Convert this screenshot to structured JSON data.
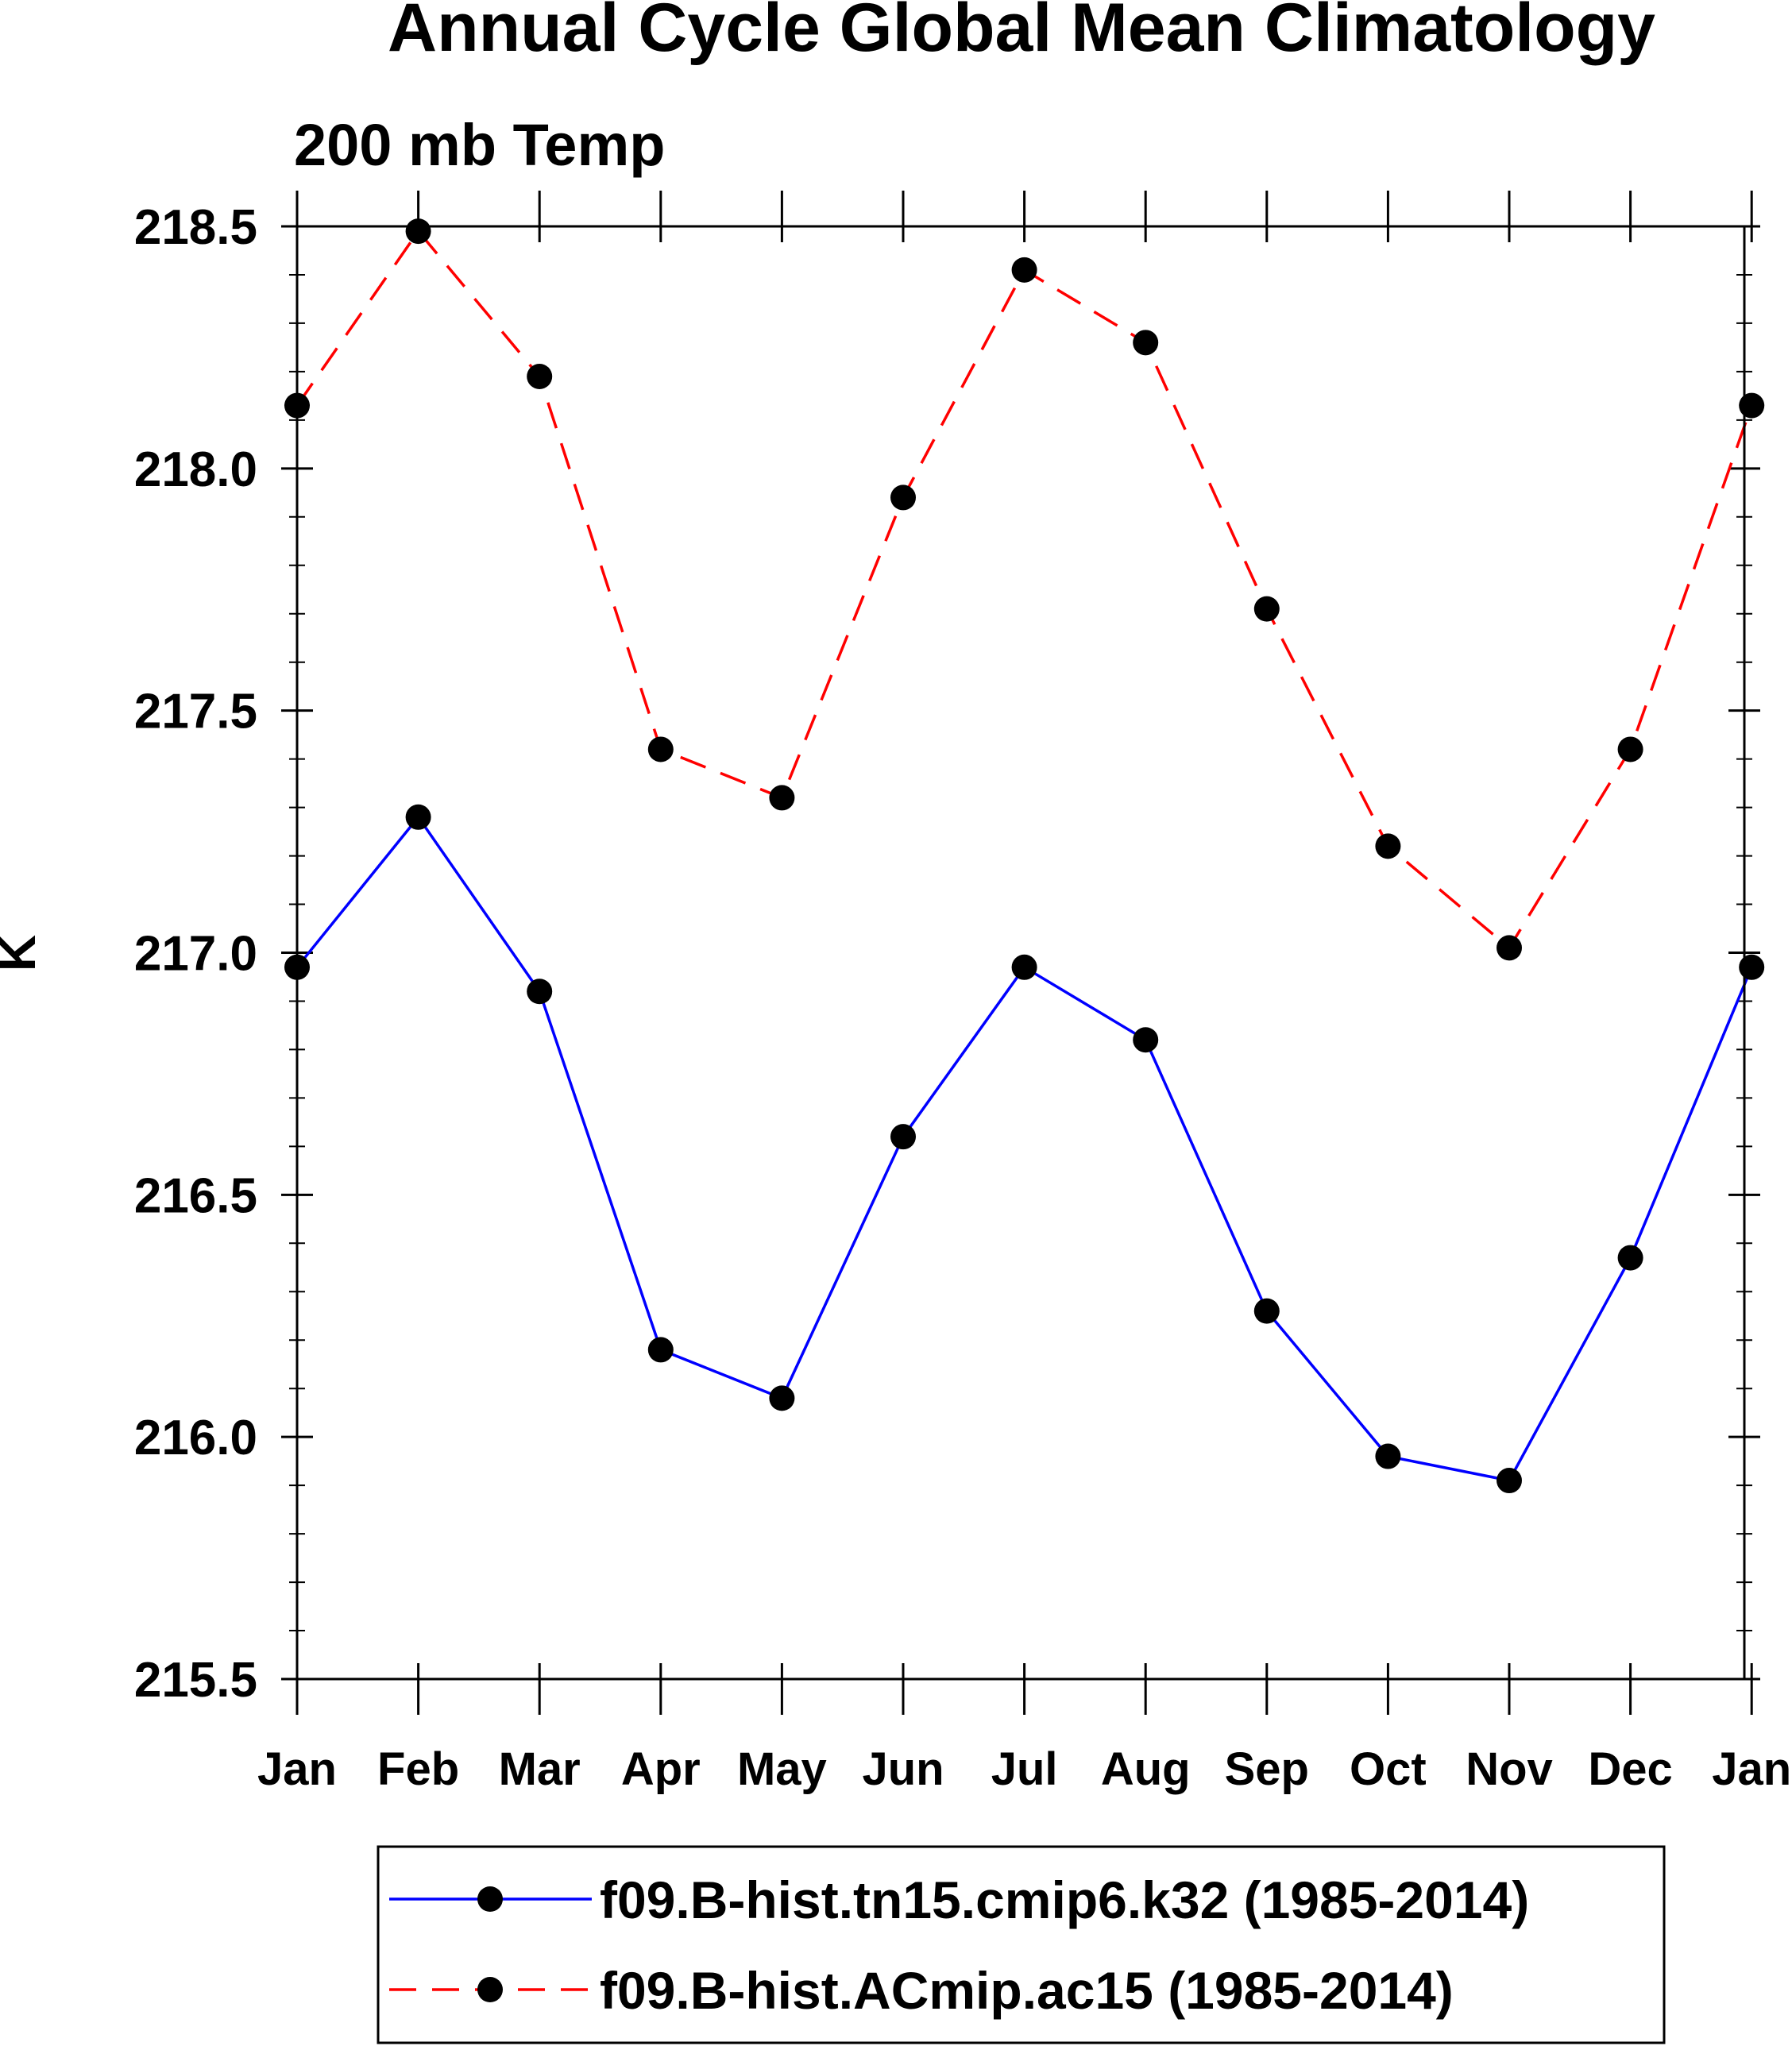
{
  "chart_data": {
    "type": "line",
    "title": "Annual Cycle Global Mean Climatology",
    "subtitle": "200 mb Temp",
    "xlabel": "",
    "ylabel": "K",
    "categories": [
      "Jan",
      "Feb",
      "Mar",
      "Apr",
      "May",
      "Jun",
      "Jul",
      "Aug",
      "Sep",
      "Oct",
      "Nov",
      "Dec",
      "Jan"
    ],
    "ylim": [
      215.5,
      218.5
    ],
    "y_ticks": [
      "218.5",
      "218.0",
      "217.5",
      "217.0",
      "216.5",
      "216.0",
      "215.5"
    ],
    "y_minor_step": 0.1,
    "grid": false,
    "legend_placement": "bottom",
    "series": [
      {
        "name": "f09.B-hist.tn15.cmip6.k32 (1985-2014)",
        "color": "#0000ff",
        "line_style": "solid",
        "marker": "filled-circle",
        "values": [
          216.97,
          217.28,
          216.92,
          216.18,
          216.08,
          216.62,
          216.97,
          216.82,
          216.26,
          215.96,
          215.91,
          216.37,
          216.97
        ]
      },
      {
        "name": "f09.B-hist.ACmip.ac15 (1985-2014)",
        "color": "#ff0000",
        "line_style": "dashed",
        "marker": "filled-circle",
        "values": [
          218.13,
          218.49,
          218.19,
          217.42,
          217.32,
          217.94,
          218.41,
          218.26,
          217.71,
          217.22,
          217.01,
          217.42,
          218.13
        ]
      }
    ]
  }
}
